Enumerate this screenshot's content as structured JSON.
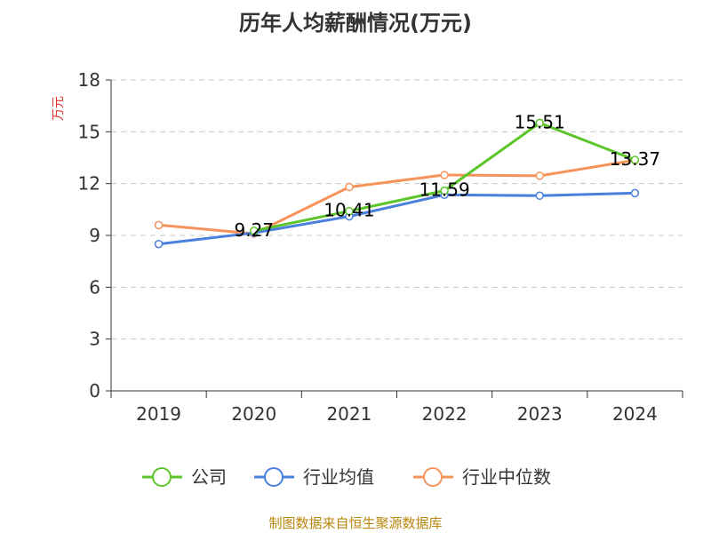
{
  "chart_data": {
    "type": "line",
    "title": "历年人均薪酬情况(万元)",
    "ylabel": "万元",
    "xlabel": "",
    "categories": [
      "2019",
      "2020",
      "2021",
      "2022",
      "2023",
      "2024"
    ],
    "ylim": [
      0,
      18
    ],
    "yticks": [
      0,
      3,
      6,
      9,
      12,
      15,
      18
    ],
    "grid": true,
    "legend_position": "bottom",
    "series": [
      {
        "name": "公司",
        "color": "#5cc52a",
        "values": [
          null,
          9.27,
          10.41,
          11.59,
          15.51,
          13.37
        ],
        "labels": [
          null,
          "9.27",
          "10.41",
          "11.59",
          "15.51",
          "13.37"
        ]
      },
      {
        "name": "行业均值",
        "color": "#4a7fdc",
        "values": [
          8.5,
          9.15,
          10.1,
          11.35,
          11.3,
          11.45
        ]
      },
      {
        "name": "行业中位数",
        "color": "#f5935a",
        "values": [
          9.6,
          9.1,
          11.8,
          12.5,
          12.45,
          13.35
        ]
      }
    ],
    "source": "制图数据来自恒生聚源数据库"
  }
}
